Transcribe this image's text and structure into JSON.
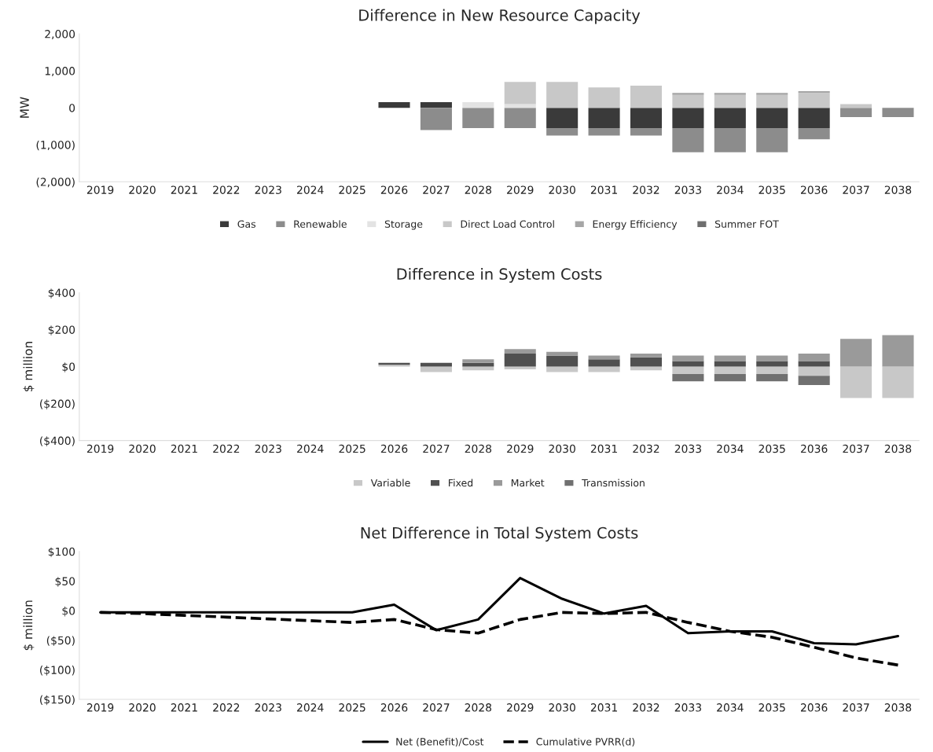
{
  "chart_data": [
    {
      "type": "bar",
      "stacked": true,
      "title": "Difference in New Resource Capacity",
      "ylabel": "MW",
      "legend": "bottom",
      "categories": [
        "2019",
        "2020",
        "2021",
        "2022",
        "2023",
        "2024",
        "2025",
        "2026",
        "2027",
        "2028",
        "2029",
        "2030",
        "2031",
        "2032",
        "2033",
        "2034",
        "2035",
        "2036",
        "2037",
        "2038"
      ],
      "ylim": [
        -2000,
        2000
      ],
      "yticks": [
        {
          "value": -2000,
          "label": "(2,000)"
        },
        {
          "value": -1000,
          "label": "(1,000)"
        },
        0,
        {
          "value": 1000,
          "label": "1,000"
        },
        {
          "value": 2000,
          "label": "2,000"
        }
      ],
      "series": [
        {
          "name": "Gas",
          "color": "#3a3a3a",
          "values": [
            0,
            0,
            0,
            0,
            0,
            0,
            0,
            150,
            150,
            0,
            0,
            -550,
            -550,
            -550,
            -550,
            -550,
            -550,
            -550,
            0,
            0
          ]
        },
        {
          "name": "Renewable",
          "color": "#8c8c8c",
          "values": [
            0,
            0,
            0,
            0,
            0,
            0,
            0,
            0,
            -600,
            -550,
            -550,
            -200,
            -200,
            -200,
            -650,
            -650,
            -650,
            -300,
            -250,
            -250
          ]
        },
        {
          "name": "Storage",
          "color": "#e3e3e3",
          "values": [
            0,
            0,
            0,
            0,
            0,
            0,
            0,
            0,
            0,
            150,
            100,
            0,
            0,
            0,
            0,
            0,
            0,
            0,
            0,
            0
          ]
        },
        {
          "name": "Direct Load Control",
          "color": "#c8c8c8",
          "values": [
            0,
            0,
            0,
            0,
            0,
            0,
            0,
            0,
            0,
            0,
            600,
            700,
            550,
            600,
            350,
            350,
            350,
            400,
            100,
            0
          ]
        },
        {
          "name": "Energy Efficiency",
          "color": "#a6a6a6",
          "values": [
            0,
            0,
            0,
            0,
            0,
            0,
            0,
            0,
            0,
            0,
            0,
            0,
            0,
            0,
            50,
            50,
            50,
            50,
            0,
            0
          ]
        },
        {
          "name": "Summer FOT",
          "color": "#6e6e6e",
          "values": [
            0,
            0,
            0,
            0,
            0,
            0,
            0,
            0,
            0,
            0,
            0,
            0,
            0,
            0,
            0,
            0,
            0,
            0,
            0,
            0
          ]
        }
      ]
    },
    {
      "type": "bar",
      "stacked": true,
      "title": "Difference in System Costs",
      "ylabel": "$ million",
      "legend": "bottom",
      "categories": [
        "2019",
        "2020",
        "2021",
        "2022",
        "2023",
        "2024",
        "2025",
        "2026",
        "2027",
        "2028",
        "2029",
        "2030",
        "2031",
        "2032",
        "2033",
        "2034",
        "2035",
        "2036",
        "2037",
        "2038"
      ],
      "ylim": [
        -400,
        400
      ],
      "yticks": [
        {
          "value": -400,
          "label": "($400)"
        },
        {
          "value": -200,
          "label": "($200)"
        },
        {
          "value": 0,
          "label": "$0"
        },
        {
          "value": 200,
          "label": "$200"
        },
        {
          "value": 400,
          "label": "$400"
        }
      ],
      "series": [
        {
          "name": "Variable",
          "color": "#c8c8c8",
          "values": [
            0,
            0,
            0,
            0,
            0,
            0,
            0,
            10,
            -30,
            -20,
            -15,
            -30,
            -30,
            -20,
            -40,
            -40,
            -40,
            -50,
            -170,
            -170
          ]
        },
        {
          "name": "Fixed",
          "color": "#505050",
          "values": [
            0,
            0,
            0,
            0,
            0,
            0,
            0,
            10,
            20,
            20,
            70,
            60,
            40,
            50,
            30,
            30,
            30,
            30,
            0,
            0
          ]
        },
        {
          "name": "Market",
          "color": "#9a9a9a",
          "values": [
            0,
            0,
            0,
            0,
            0,
            0,
            0,
            0,
            0,
            20,
            25,
            20,
            20,
            20,
            30,
            30,
            30,
            40,
            150,
            170
          ]
        },
        {
          "name": "Transmission",
          "color": "#707070",
          "values": [
            0,
            0,
            0,
            0,
            0,
            0,
            0,
            0,
            0,
            0,
            0,
            0,
            0,
            0,
            -40,
            -40,
            -40,
            -50,
            0,
            0
          ]
        }
      ]
    },
    {
      "type": "line",
      "title": "Net Difference in Total System Costs",
      "ylabel": "$ million",
      "legend": "bottom",
      "categories": [
        "2019",
        "2020",
        "2021",
        "2022",
        "2023",
        "2024",
        "2025",
        "2026",
        "2027",
        "2028",
        "2029",
        "2030",
        "2031",
        "2032",
        "2033",
        "2034",
        "2035",
        "2036",
        "2037",
        "2038"
      ],
      "ylim": [
        -150,
        100
      ],
      "yticks": [
        {
          "value": -150,
          "label": "($150)"
        },
        {
          "value": -100,
          "label": "($100)"
        },
        {
          "value": -50,
          "label": "($50)"
        },
        {
          "value": 0,
          "label": "$0"
        },
        {
          "value": 50,
          "label": "$50"
        },
        {
          "value": 100,
          "label": "$100"
        }
      ],
      "series": [
        {
          "name": "Net (Benefit)/Cost",
          "color": "#000000",
          "line_style": "solid",
          "values": [
            -3,
            -3,
            -3,
            -3,
            -3,
            -3,
            -3,
            10,
            -33,
            -15,
            55,
            20,
            -5,
            8,
            -38,
            -35,
            -35,
            -55,
            -57,
            -43
          ]
        },
        {
          "name": "Cumulative PVRR(d)",
          "color": "#000000",
          "line_style": "dashed",
          "values": [
            -3,
            -5,
            -8,
            -11,
            -14,
            -17,
            -20,
            -15,
            -32,
            -38,
            -15,
            -3,
            -5,
            -3,
            -20,
            -35,
            -45,
            -62,
            -80,
            -92
          ]
        }
      ]
    }
  ]
}
